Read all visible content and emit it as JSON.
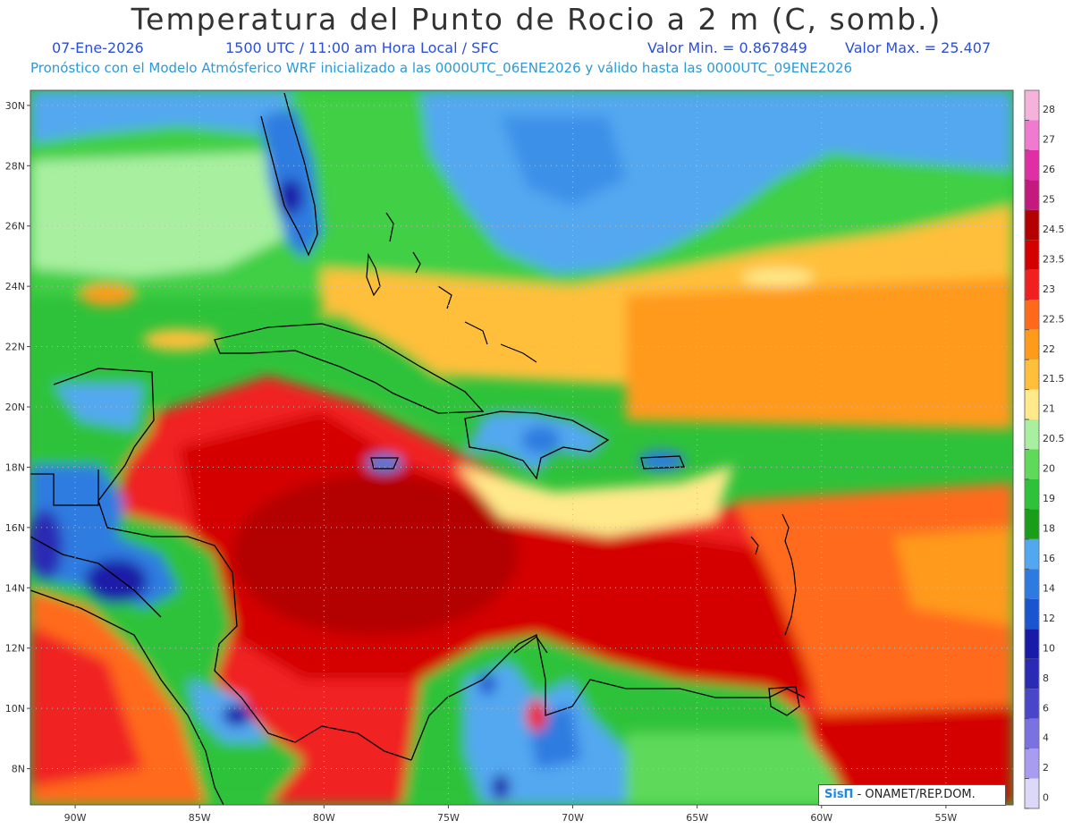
{
  "header": {
    "title": "Temperatura del Punto de Rocio a 2 m (C, somb.)",
    "date": "07-Ene-2026",
    "time_info": "1500 UTC / 11:00 am Hora Local / SFC",
    "min_value": "Valor Min. = 0.867849",
    "max_value": "Valor Max. = 25.407",
    "model_info": "Pronóstico con el Modelo Atmósferico WRF inicializado a las 0000UTC_06ENE2026 y válido hasta las  0000UTC_09ENE2026"
  },
  "map": {
    "lat_labels": [
      "30N",
      "28N",
      "26N",
      "24N",
      "22N",
      "20N",
      "18N",
      "16N",
      "14N",
      "12N",
      "10N",
      "8N"
    ],
    "lon_labels": [
      "90W",
      "85W",
      "80W",
      "75W",
      "70W",
      "65W",
      "60W",
      "55W"
    ],
    "lat_values": [
      30,
      28,
      26,
      24,
      22,
      20,
      18,
      16,
      14,
      12,
      10,
      8
    ],
    "lon_values": [
      -90,
      -85,
      -80,
      -75,
      -70,
      -65,
      -60,
      -55
    ],
    "extent": {
      "lon_min": -91.8,
      "lon_max": -52.3,
      "lat_min": 6.8,
      "lat_max": 30.5
    }
  },
  "colorbar": {
    "labels": [
      "28",
      "27",
      "26",
      "25",
      "24.5",
      "23.5",
      "23",
      "22.5",
      "22",
      "21.5",
      "21",
      "20.5",
      "20",
      "19",
      "18",
      "16",
      "14",
      "12",
      "10",
      "8",
      "6",
      "4",
      "2",
      "0"
    ],
    "colors": [
      "#f5b3dc",
      "#f07ad0",
      "#e02fa5",
      "#c41a7e",
      "#b30000",
      "#d40000",
      "#f02020",
      "#ff6a1a",
      "#ff9a1a",
      "#ffbf3a",
      "#ffe98a",
      "#a8f0a0",
      "#5fd95a",
      "#2ec23a",
      "#1a9e1a",
      "#52a8f0",
      "#2d7be0",
      "#1a55d0",
      "#1a1aa8",
      "#2a2ab5",
      "#4a46c9",
      "#7a72e0",
      "#a89cf0",
      "#dcd8f8"
    ]
  },
  "credit": {
    "sis": "SisΠ",
    "text": " - ONAMET/REP.DOM."
  }
}
